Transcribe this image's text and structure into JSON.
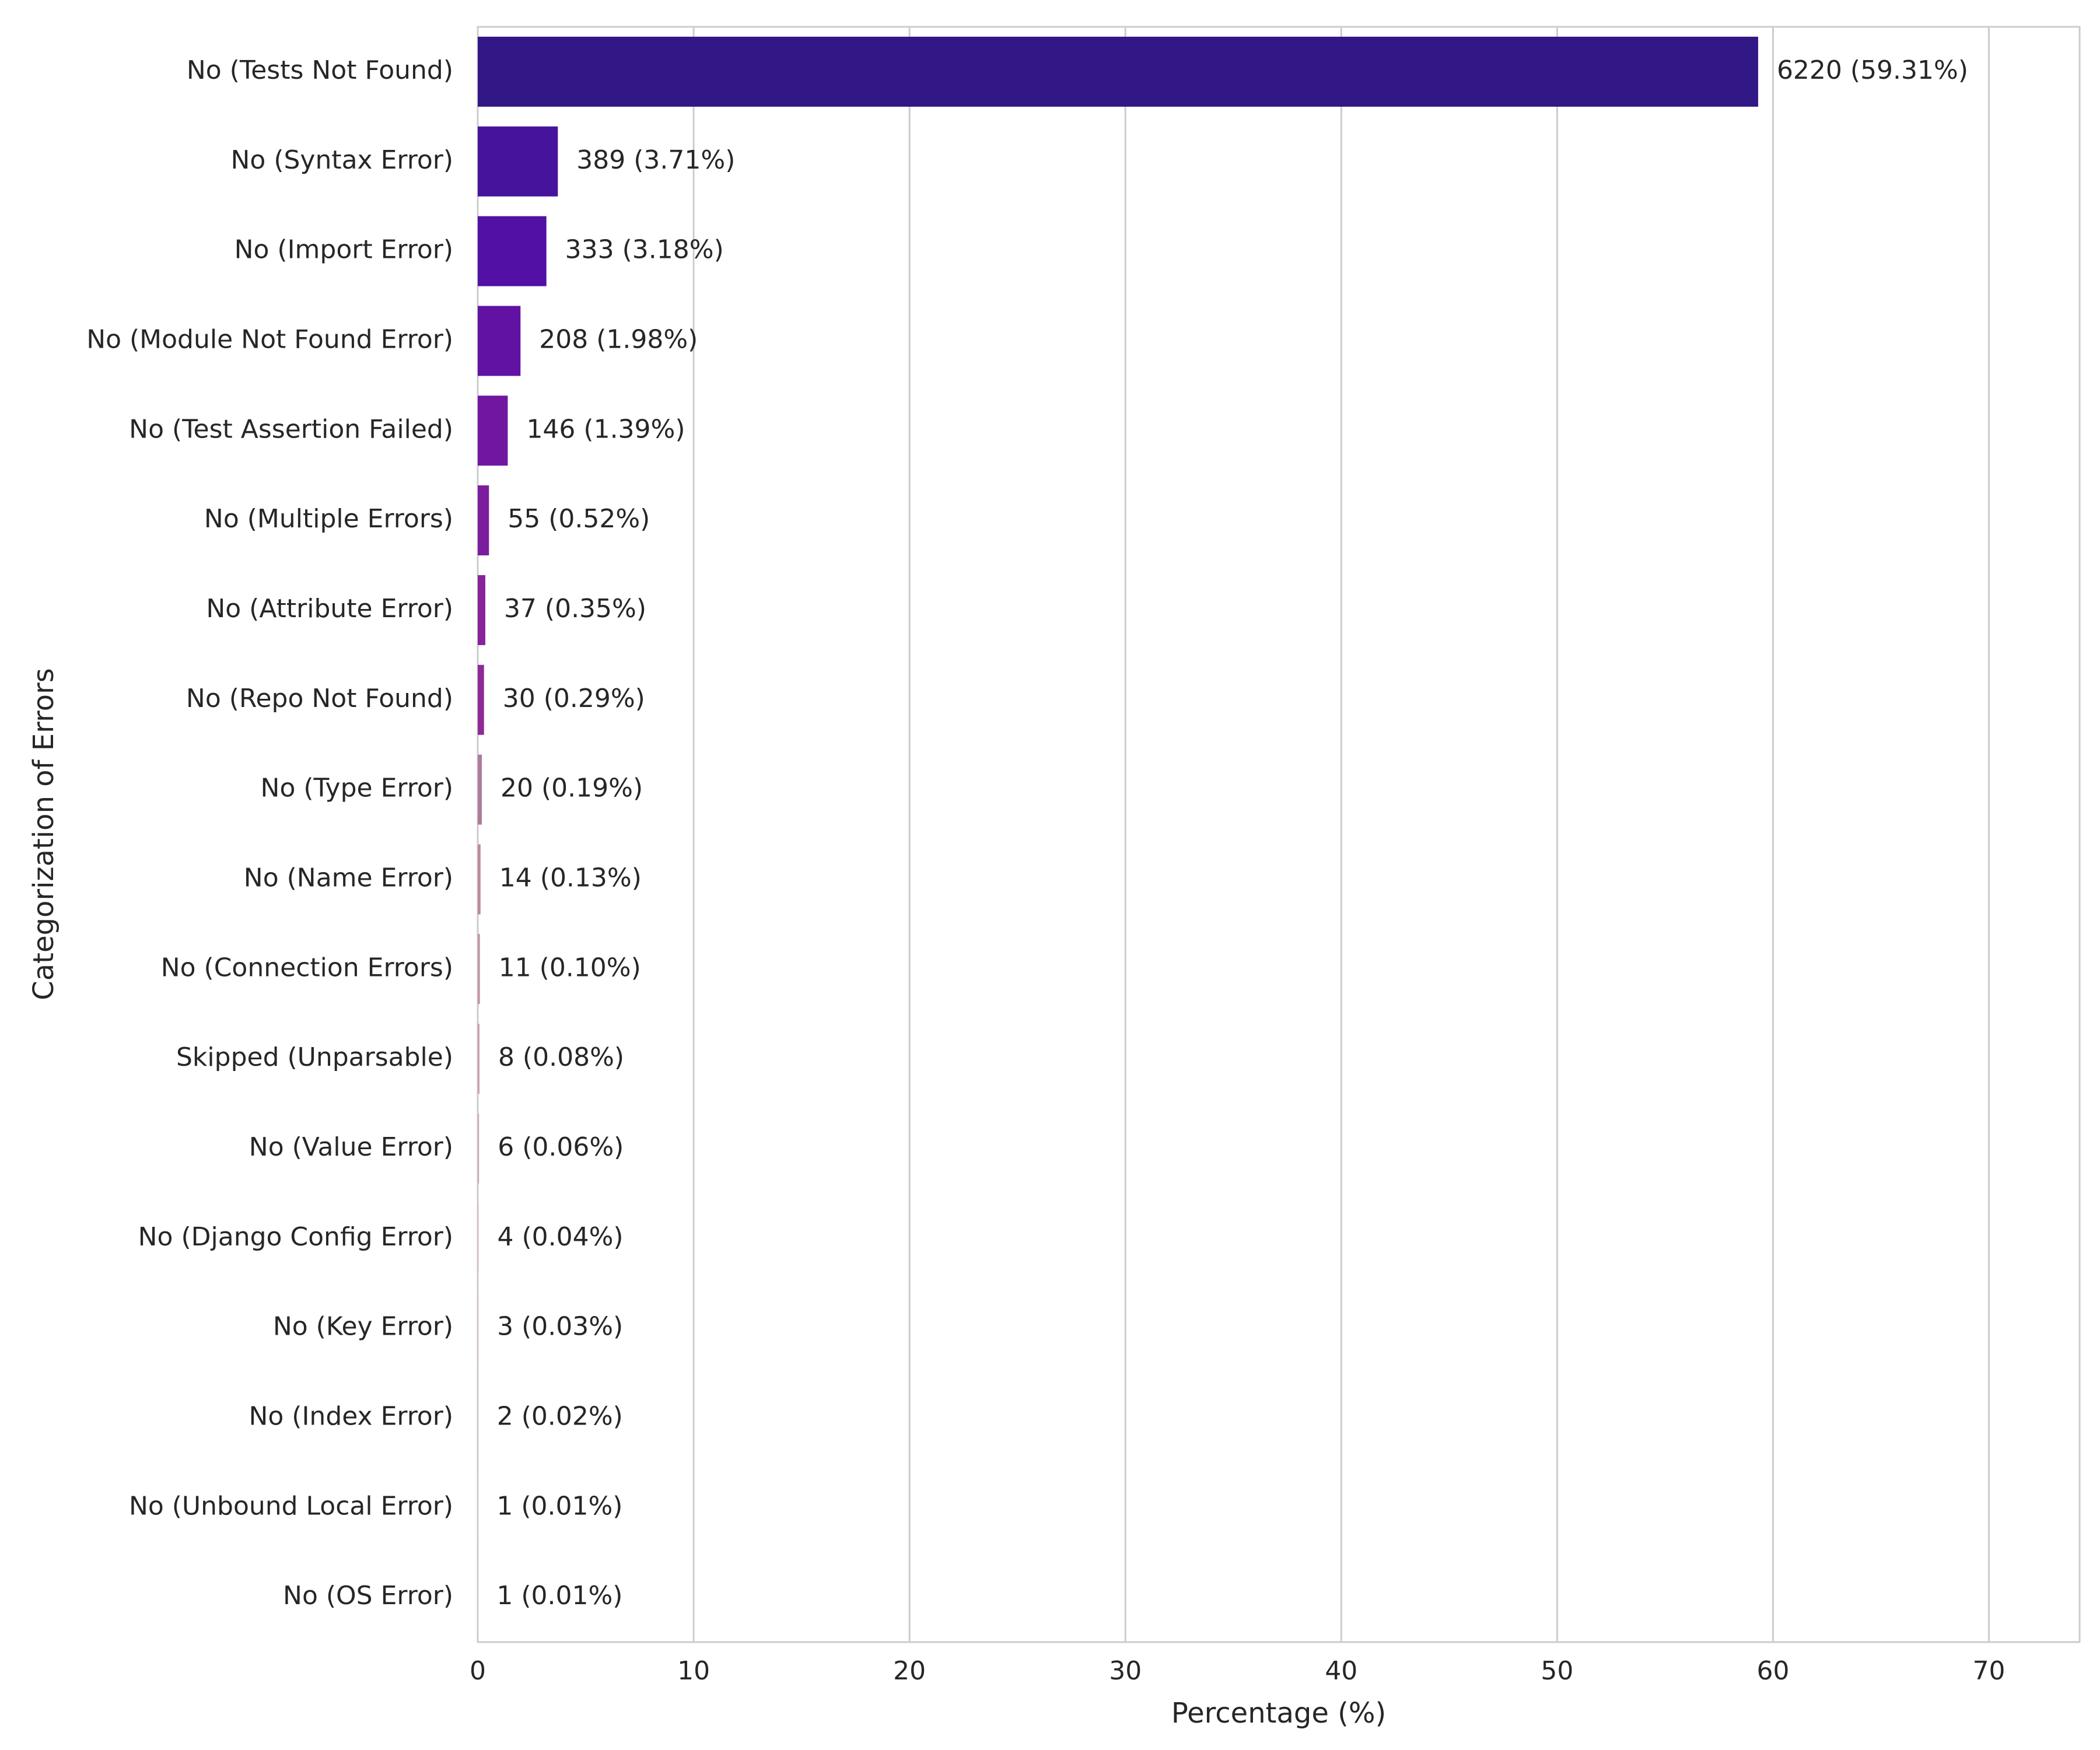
{
  "chart_data": {
    "type": "barh",
    "xlabel": "Percentage (%)",
    "ylabel": "Categorization of Errors",
    "categories": [
      "No (Tests Not Found)",
      "No (Syntax Error)",
      "No (Import Error)",
      "No (Module Not Found Error)",
      "No (Test Assertion Failed)",
      "No (Multiple Errors)",
      "No (Attribute Error)",
      "No (Repo Not Found)",
      "No (Type Error)",
      "No (Name Error)",
      "No (Connection Errors)",
      "Skipped (Unparsable)",
      "No (Value Error)",
      "No (Django Config Error)",
      "No (Key Error)",
      "No (Index Error)",
      "No (Unbound Local Error)",
      "No (OS Error)"
    ],
    "values": [
      59.31,
      3.71,
      3.18,
      1.98,
      1.39,
      0.52,
      0.35,
      0.29,
      0.19,
      0.13,
      0.1,
      0.08,
      0.06,
      0.04,
      0.03,
      0.02,
      0.01,
      0.01
    ],
    "value_labels": [
      "6220 (59.31%)",
      "389 (3.71%)",
      "333 (3.18%)",
      "208 (1.98%)",
      "146 (1.39%)",
      "55 (0.52%)",
      "37 (0.35%)",
      "30 (0.29%)",
      "20 (0.19%)",
      "14 (0.13%)",
      "11 (0.10%)",
      "8 (0.08%)",
      "6 (0.06%)",
      "4 (0.04%)",
      "3 (0.03%)",
      "2 (0.02%)",
      "1 (0.01%)",
      "1 (0.01%)"
    ],
    "colors": [
      "#321786",
      "#45139c",
      "#5210a4",
      "#6212a2",
      "#7016a0",
      "#7c1c9e",
      "#86239a",
      "#8e2a96",
      "#b07a9a",
      "#b98aa0",
      "#c195a6",
      "#c8a0ad",
      "#ceaab4",
      "#d4b4bb",
      "#dabec2",
      "#e0c8c9",
      "#e6d2d0",
      "#ecdcd8"
    ],
    "xlim": [
      0,
      74.2
    ],
    "xticks": [
      0,
      10,
      20,
      30,
      40,
      50,
      60,
      70
    ],
    "grid": true
  }
}
